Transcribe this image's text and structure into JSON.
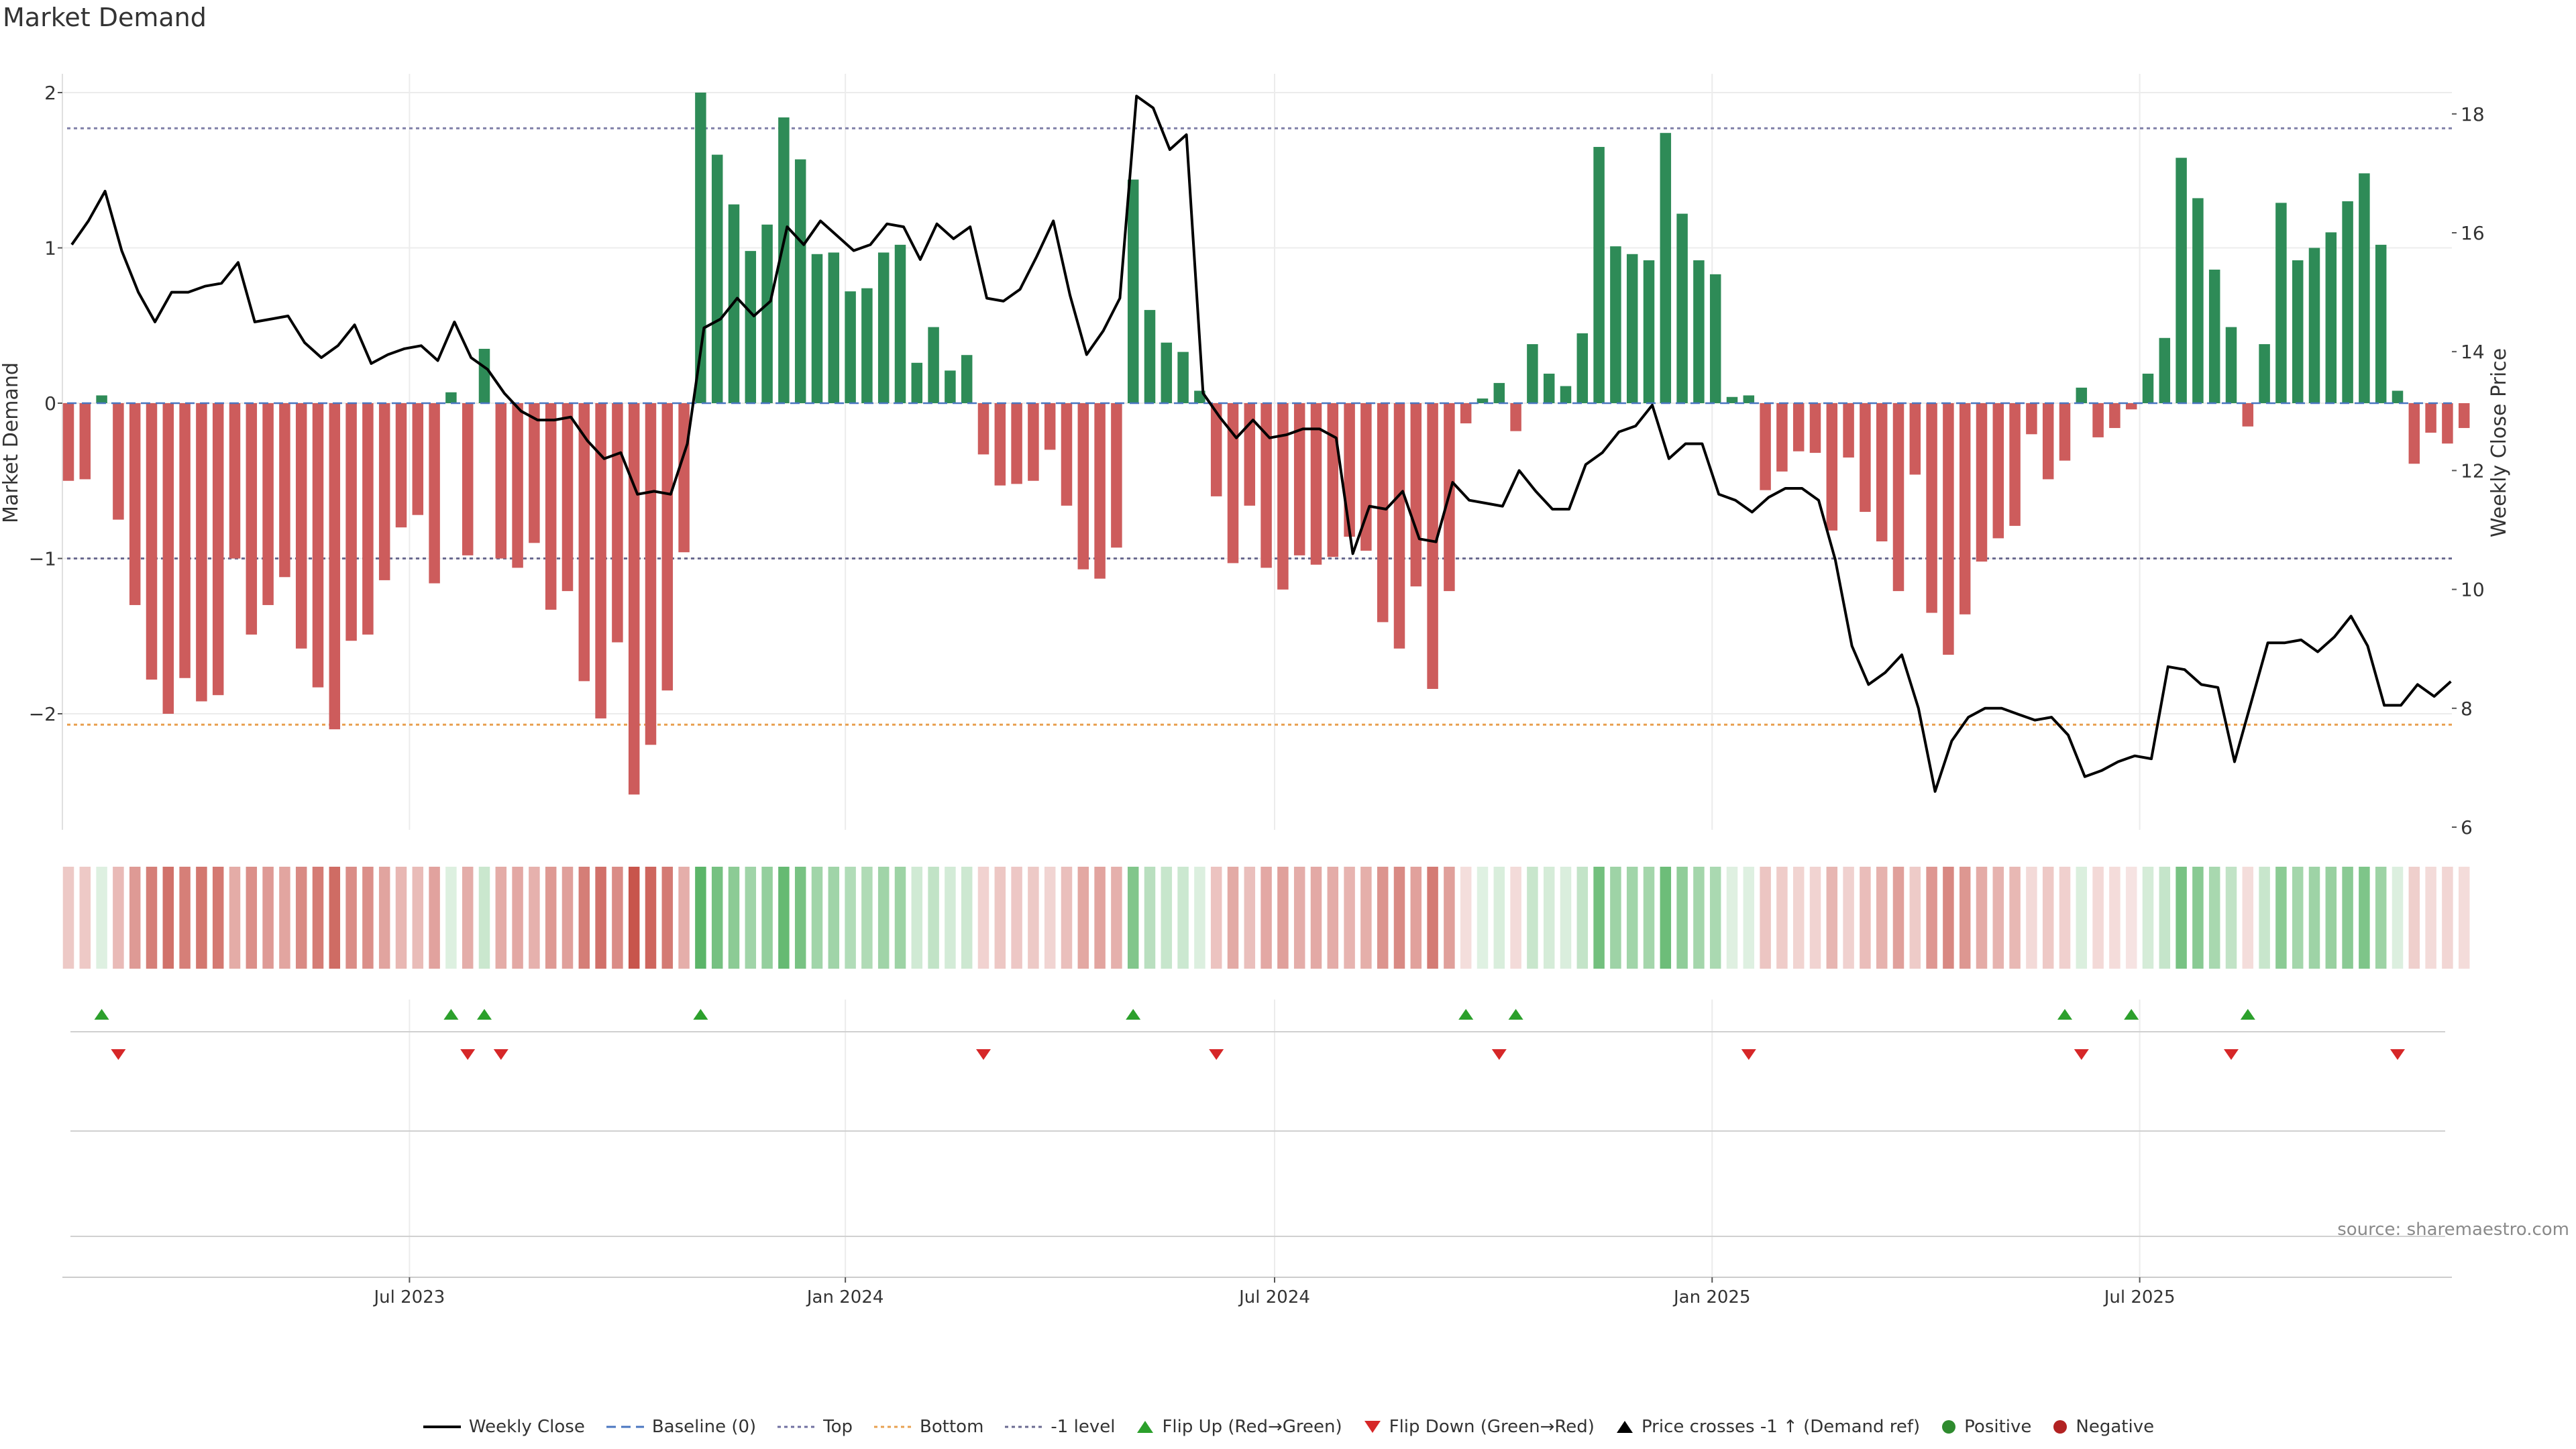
{
  "title": "Market Demand",
  "source_text": "source: sharemaestro.com",
  "colors": {
    "positive": "#2e8b57",
    "negative": "#cd5c5c",
    "line": "#000000",
    "top": "#8080a8",
    "bottom": "#e8a050",
    "flip_up": "#2ca02c",
    "flip_down": "#d62728"
  },
  "legend": [
    {
      "key": "weekly_close",
      "label": "Weekly Close"
    },
    {
      "key": "baseline",
      "label": "Baseline (0)"
    },
    {
      "key": "top",
      "label": "Top"
    },
    {
      "key": "bottom",
      "label": "Bottom"
    },
    {
      "key": "minus1",
      "label": "-1 level"
    },
    {
      "key": "flip_up",
      "label": "Flip Up (Red→Green)"
    },
    {
      "key": "flip_down",
      "label": "Flip Down (Green→Red)"
    },
    {
      "key": "price_cross",
      "label": "Price crosses -1 ↑ (Demand ref)"
    },
    {
      "key": "positive",
      "label": "Positive"
    },
    {
      "key": "negative",
      "label": "Negative"
    }
  ],
  "chart_data": {
    "type": "bar",
    "title": "Market Demand",
    "ylabel": "Market Demand",
    "y2label": "Weekly Close Price",
    "ylim": [
      -2.8,
      2.0
    ],
    "y2lim": [
      6,
      18.5
    ],
    "yticks": [
      "2",
      "1",
      "0",
      "−1",
      "−2"
    ],
    "y2ticks": [
      "18",
      "16",
      "14",
      "12",
      "10",
      "8",
      "6"
    ],
    "top_level": 1.77,
    "bottom_level": -2.07,
    "minus1_level": -1.0,
    "x_tick_labels": [
      {
        "label": "Jul 2023",
        "week": 20.5
      },
      {
        "label": "Jan 2024",
        "week": 46.7
      },
      {
        "label": "Jul 2024",
        "week": 72.5
      },
      {
        "label": "Jan 2025",
        "week": 98.8
      },
      {
        "label": "Jul 2025",
        "week": 124.5
      }
    ],
    "demand": [
      -0.5,
      -0.49,
      0.05,
      -0.75,
      -1.3,
      -1.78,
      -2.0,
      -1.77,
      -1.92,
      -1.88,
      -1.0,
      -1.49,
      -1.3,
      -1.12,
      -1.58,
      -1.83,
      -2.1,
      -1.53,
      -1.49,
      -1.14,
      -0.8,
      -0.72,
      -1.16,
      0.07,
      -0.98,
      0.35,
      -1.0,
      -1.06,
      -0.9,
      -1.33,
      -1.21,
      -1.79,
      -2.03,
      -1.54,
      -2.52,
      -2.2,
      -1.85,
      -0.96,
      2.0,
      1.6,
      1.28,
      0.98,
      1.15,
      1.84,
      1.57,
      0.96,
      0.97,
      0.72,
      0.74,
      0.97,
      1.02,
      0.26,
      0.49,
      0.21,
      0.31,
      -0.33,
      -0.53,
      -0.52,
      -0.5,
      -0.3,
      -0.66,
      -1.07,
      -1.13,
      -0.93,
      1.44,
      0.6,
      0.39,
      0.33,
      0.08,
      -0.6,
      -1.03,
      -0.66,
      -1.06,
      -1.2,
      -0.98,
      -1.04,
      -0.99,
      -0.86,
      -0.95,
      -1.41,
      -1.58,
      -1.18,
      -1.84,
      -1.21,
      -0.13,
      0.03,
      0.13,
      -0.18,
      0.38,
      0.19,
      0.11,
      0.45,
      1.65,
      1.01,
      0.96,
      0.92,
      1.74,
      1.22,
      0.92,
      0.83,
      0.04,
      0.05,
      -0.56,
      -0.44,
      -0.31,
      -0.32,
      -0.82,
      -0.35,
      -0.7,
      -0.89,
      -1.21,
      -0.46,
      -1.35,
      -1.62,
      -1.36,
      -1.02,
      -0.87,
      -0.79,
      -0.2,
      -0.49,
      -0.37,
      0.1,
      -0.22,
      -0.16,
      -0.04,
      0.19,
      0.42,
      1.58,
      1.32,
      0.86,
      0.49,
      -0.15,
      0.38,
      1.29,
      0.92,
      1.0,
      1.1,
      1.3,
      1.48,
      1.02,
      0.08,
      -0.39,
      -0.19,
      -0.26,
      -0.16
    ],
    "price": [
      15.8,
      16.2,
      16.7,
      15.7,
      15.0,
      14.5,
      15.0,
      15.0,
      15.1,
      15.15,
      15.5,
      14.5,
      14.55,
      14.6,
      14.15,
      13.9,
      14.1,
      14.45,
      13.8,
      13.95,
      14.05,
      14.1,
      13.85,
      14.5,
      13.9,
      13.7,
      13.3,
      13.0,
      12.85,
      12.85,
      12.9,
      12.5,
      12.2,
      12.3,
      11.6,
      11.65,
      11.6,
      12.45,
      14.4,
      14.55,
      14.9,
      14.6,
      14.85,
      16.1,
      15.8,
      16.2,
      15.95,
      15.7,
      15.8,
      16.15,
      16.1,
      15.55,
      16.15,
      15.9,
      16.1,
      14.9,
      14.85,
      15.05,
      15.6,
      16.2,
      14.95,
      13.95,
      14.35,
      14.9,
      18.3,
      18.1,
      17.4,
      17.65,
      13.3,
      12.9,
      12.55,
      12.85,
      12.55,
      12.6,
      12.7,
      12.7,
      12.55,
      10.6,
      11.4,
      11.35,
      11.65,
      10.85,
      10.8,
      11.8,
      11.5,
      11.45,
      11.4,
      12.0,
      11.65,
      11.35,
      11.35,
      12.1,
      12.3,
      12.65,
      12.75,
      13.1,
      12.2,
      12.45,
      12.45,
      11.6,
      11.5,
      11.3,
      11.55,
      11.7,
      11.7,
      11.5,
      10.5,
      9.05,
      8.4,
      8.6,
      8.9,
      8.0,
      6.6,
      7.45,
      7.85,
      8.0,
      8.0,
      7.9,
      7.8,
      7.85,
      7.55,
      6.85,
      6.95,
      7.1,
      7.2,
      7.15,
      8.7,
      8.65,
      8.4,
      8.35,
      7.1,
      8.1,
      9.1,
      9.1,
      9.15,
      8.95,
      9.2,
      9.55,
      9.05,
      8.05,
      8.05,
      8.4,
      8.2,
      8.45
    ],
    "flip_up_weeks": [
      2,
      23,
      25,
      38,
      64,
      84,
      87,
      120,
      124,
      131
    ],
    "flip_down_weeks": [
      3,
      24,
      26,
      55,
      69,
      86,
      101,
      121,
      130,
      140
    ]
  }
}
